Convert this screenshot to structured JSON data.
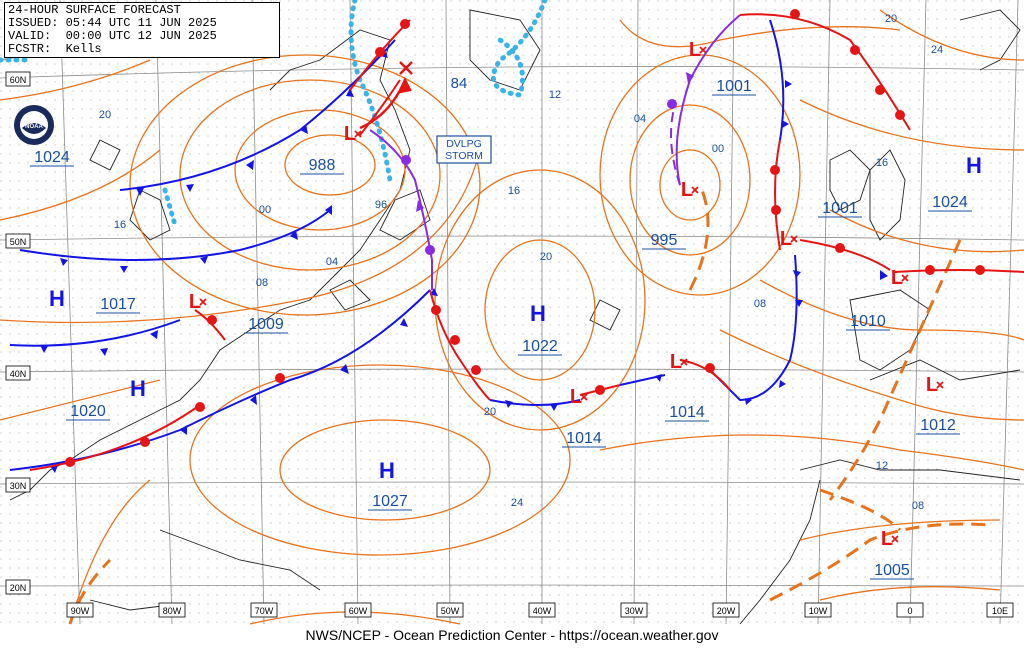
{
  "header": {
    "title": "24-HOUR SURFACE FORECAST",
    "issued": "ISSUED: 05:44 UTC 11 JUN 2025",
    "valid": "VALID:  00:00 UTC 12 JUN 2025",
    "forecaster": "FCSTR:  Kells"
  },
  "footer": "NWS/NCEP - Ocean Prediction Center - https://ocean.weather.gov",
  "logo": {
    "name": "noaa-logo",
    "text": "NOAA"
  },
  "colors": {
    "isobar": "#e8731e",
    "cold_front": "#1414e6",
    "warm_front": "#e61414",
    "occluded_front": "#8a2be2",
    "ice": "#3ab4e8",
    "label": "#1a4fa0",
    "grid": "#9a9a9a"
  },
  "lat_labels": [
    "60N",
    "50N",
    "40N",
    "30N",
    "20N"
  ],
  "lon_labels": [
    "90W",
    "80W",
    "70W",
    "60W",
    "50W",
    "40W",
    "30W",
    "20W",
    "10W",
    "0",
    "10E"
  ],
  "pressure_centers": [
    {
      "type": "H",
      "value": "1024"
    },
    {
      "type": "H",
      "value": "1017"
    },
    {
      "type": "H",
      "value": "1020"
    },
    {
      "type": "L",
      "value": "1009"
    },
    {
      "type": "L",
      "value": "988"
    },
    {
      "type": "H",
      "value": "1022"
    },
    {
      "type": "H",
      "value": "1027"
    },
    {
      "type": "L",
      "value": "1014"
    },
    {
      "type": "L",
      "value": "1014"
    },
    {
      "type": "L",
      "value": "995"
    },
    {
      "type": "L",
      "value": "1001"
    },
    {
      "type": "L",
      "value": "1001"
    },
    {
      "type": "H",
      "value": "1024"
    },
    {
      "type": "L",
      "value": "1010"
    },
    {
      "type": "L",
      "value": "1012"
    },
    {
      "type": "L",
      "value": "1005"
    }
  ],
  "isobar_labels": [
    "20",
    "16",
    "00",
    "04",
    "08",
    "96",
    "84",
    "12",
    "16",
    "20",
    "04",
    "00",
    "08",
    "20",
    "24",
    "20",
    "16",
    "24",
    "12",
    "08"
  ],
  "storm_box": {
    "line1": "DVLPG",
    "line2": "STORM"
  }
}
